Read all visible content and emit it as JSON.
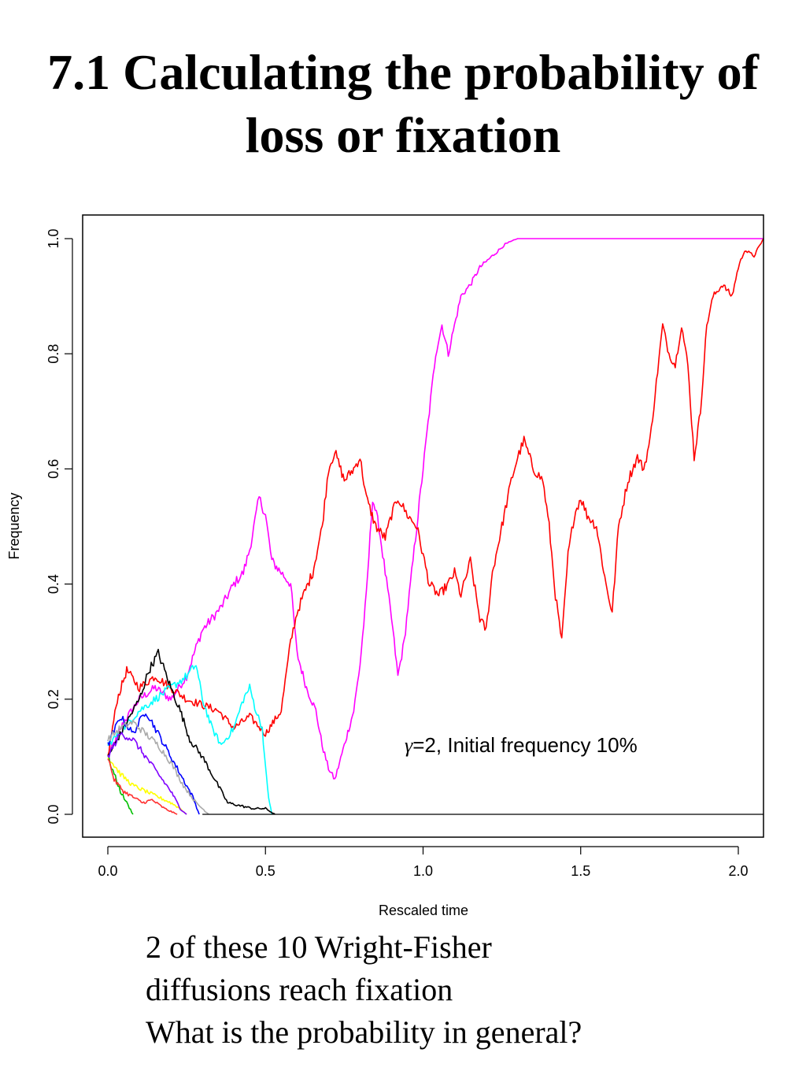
{
  "slide": {
    "title_line1": "7.1 Calculating the probability of",
    "title_line2": "loss or fixation"
  },
  "caption": {
    "line1": "2 of these 10 Wright-Fisher",
    "line2": "diffusions reach fixation",
    "line3": "What is the probability in general?"
  },
  "chart_data": {
    "type": "line",
    "title": "",
    "xlabel": "Rescaled time",
    "ylabel": "Frequency",
    "xlim": [
      0.0,
      2.08
    ],
    "ylim": [
      0.0,
      1.0
    ],
    "xticks": [
      "0.0",
      "0.5",
      "1.0",
      "1.5",
      "2.0"
    ],
    "xtick_values": [
      0.0,
      0.5,
      1.0,
      1.5,
      2.0
    ],
    "yticks": [
      "0.0",
      "0.2",
      "0.4",
      "0.6",
      "0.8",
      "1.0"
    ],
    "ytick_values": [
      0.0,
      0.2,
      0.4,
      0.6,
      0.8,
      1.0
    ],
    "grid": false,
    "annotation": {
      "symbol": "γ",
      "text": "=2, Initial frequency 10%"
    },
    "series": [
      {
        "color": "#ff00ff",
        "values": [
          [
            0.0,
            0.1
          ],
          [
            0.05,
            0.16
          ],
          [
            0.1,
            0.2
          ],
          [
            0.15,
            0.22
          ],
          [
            0.2,
            0.2
          ],
          [
            0.25,
            0.24
          ],
          [
            0.28,
            0.29
          ],
          [
            0.3,
            0.32
          ],
          [
            0.33,
            0.34
          ],
          [
            0.36,
            0.36
          ],
          [
            0.4,
            0.4
          ],
          [
            0.43,
            0.42
          ],
          [
            0.45,
            0.46
          ],
          [
            0.48,
            0.55
          ],
          [
            0.5,
            0.52
          ],
          [
            0.52,
            0.44
          ],
          [
            0.55,
            0.42
          ],
          [
            0.58,
            0.4
          ],
          [
            0.6,
            0.28
          ],
          [
            0.63,
            0.22
          ],
          [
            0.66,
            0.18
          ],
          [
            0.68,
            0.12
          ],
          [
            0.7,
            0.08
          ],
          [
            0.72,
            0.06
          ],
          [
            0.75,
            0.12
          ],
          [
            0.78,
            0.18
          ],
          [
            0.8,
            0.26
          ],
          [
            0.82,
            0.38
          ],
          [
            0.84,
            0.55
          ],
          [
            0.86,
            0.5
          ],
          [
            0.88,
            0.42
          ],
          [
            0.9,
            0.34
          ],
          [
            0.92,
            0.24
          ],
          [
            0.94,
            0.3
          ],
          [
            0.96,
            0.4
          ],
          [
            0.98,
            0.5
          ],
          [
            1.0,
            0.6
          ],
          [
            1.02,
            0.7
          ],
          [
            1.04,
            0.8
          ],
          [
            1.06,
            0.85
          ],
          [
            1.08,
            0.8
          ],
          [
            1.1,
            0.85
          ],
          [
            1.12,
            0.9
          ],
          [
            1.15,
            0.92
          ],
          [
            1.18,
            0.95
          ],
          [
            1.22,
            0.97
          ],
          [
            1.26,
            0.99
          ],
          [
            1.3,
            1.0
          ],
          [
            2.08,
            1.0
          ]
        ]
      },
      {
        "color": "#ff0000",
        "values": [
          [
            0.0,
            0.1
          ],
          [
            0.03,
            0.2
          ],
          [
            0.06,
            0.25
          ],
          [
            0.1,
            0.22
          ],
          [
            0.15,
            0.24
          ],
          [
            0.2,
            0.22
          ],
          [
            0.25,
            0.2
          ],
          [
            0.3,
            0.19
          ],
          [
            0.35,
            0.18
          ],
          [
            0.4,
            0.15
          ],
          [
            0.45,
            0.17
          ],
          [
            0.5,
            0.14
          ],
          [
            0.55,
            0.18
          ],
          [
            0.58,
            0.3
          ],
          [
            0.6,
            0.35
          ],
          [
            0.62,
            0.38
          ],
          [
            0.65,
            0.42
          ],
          [
            0.68,
            0.5
          ],
          [
            0.7,
            0.6
          ],
          [
            0.72,
            0.63
          ],
          [
            0.75,
            0.58
          ],
          [
            0.78,
            0.6
          ],
          [
            0.8,
            0.62
          ],
          [
            0.82,
            0.55
          ],
          [
            0.85,
            0.5
          ],
          [
            0.88,
            0.48
          ],
          [
            0.9,
            0.52
          ],
          [
            0.92,
            0.55
          ],
          [
            0.95,
            0.52
          ],
          [
            0.98,
            0.5
          ],
          [
            1.0,
            0.45
          ],
          [
            1.02,
            0.4
          ],
          [
            1.05,
            0.38
          ],
          [
            1.08,
            0.4
          ],
          [
            1.1,
            0.42
          ],
          [
            1.12,
            0.38
          ],
          [
            1.15,
            0.44
          ],
          [
            1.18,
            0.34
          ],
          [
            1.2,
            0.32
          ],
          [
            1.22,
            0.42
          ],
          [
            1.25,
            0.5
          ],
          [
            1.28,
            0.58
          ],
          [
            1.3,
            0.62
          ],
          [
            1.32,
            0.65
          ],
          [
            1.35,
            0.6
          ],
          [
            1.38,
            0.58
          ],
          [
            1.4,
            0.5
          ],
          [
            1.42,
            0.38
          ],
          [
            1.44,
            0.3
          ],
          [
            1.46,
            0.45
          ],
          [
            1.48,
            0.52
          ],
          [
            1.5,
            0.55
          ],
          [
            1.52,
            0.52
          ],
          [
            1.55,
            0.5
          ],
          [
            1.58,
            0.4
          ],
          [
            1.6,
            0.35
          ],
          [
            1.62,
            0.5
          ],
          [
            1.65,
            0.58
          ],
          [
            1.68,
            0.62
          ],
          [
            1.7,
            0.6
          ],
          [
            1.72,
            0.65
          ],
          [
            1.74,
            0.75
          ],
          [
            1.76,
            0.85
          ],
          [
            1.78,
            0.8
          ],
          [
            1.8,
            0.78
          ],
          [
            1.82,
            0.85
          ],
          [
            1.84,
            0.78
          ],
          [
            1.86,
            0.62
          ],
          [
            1.88,
            0.7
          ],
          [
            1.9,
            0.85
          ],
          [
            1.92,
            0.9
          ],
          [
            1.95,
            0.92
          ],
          [
            1.98,
            0.9
          ],
          [
            2.0,
            0.95
          ],
          [
            2.02,
            0.98
          ],
          [
            2.05,
            0.97
          ],
          [
            2.08,
            1.0
          ]
        ]
      },
      {
        "color": "#00ffff",
        "values": [
          [
            0.0,
            0.12
          ],
          [
            0.05,
            0.15
          ],
          [
            0.1,
            0.18
          ],
          [
            0.15,
            0.2
          ],
          [
            0.2,
            0.22
          ],
          [
            0.25,
            0.24
          ],
          [
            0.28,
            0.26
          ],
          [
            0.3,
            0.2
          ],
          [
            0.33,
            0.15
          ],
          [
            0.36,
            0.12
          ],
          [
            0.4,
            0.15
          ],
          [
            0.43,
            0.2
          ],
          [
            0.45,
            0.22
          ],
          [
            0.47,
            0.18
          ],
          [
            0.49,
            0.15
          ],
          [
            0.5,
            0.08
          ],
          [
            0.51,
            0.03
          ],
          [
            0.52,
            0.0
          ]
        ]
      },
      {
        "color": "#000000",
        "values": [
          [
            0.0,
            0.1
          ],
          [
            0.05,
            0.15
          ],
          [
            0.1,
            0.2
          ],
          [
            0.13,
            0.25
          ],
          [
            0.16,
            0.28
          ],
          [
            0.2,
            0.22
          ],
          [
            0.23,
            0.18
          ],
          [
            0.26,
            0.13
          ],
          [
            0.3,
            0.1
          ],
          [
            0.33,
            0.07
          ],
          [
            0.36,
            0.04
          ],
          [
            0.38,
            0.02
          ],
          [
            0.42,
            0.015
          ],
          [
            0.46,
            0.01
          ],
          [
            0.5,
            0.01
          ],
          [
            0.53,
            0.0
          ]
        ]
      },
      {
        "color": "#0000ff",
        "values": [
          [
            0.0,
            0.12
          ],
          [
            0.04,
            0.17
          ],
          [
            0.08,
            0.14
          ],
          [
            0.12,
            0.18
          ],
          [
            0.16,
            0.14
          ],
          [
            0.2,
            0.1
          ],
          [
            0.24,
            0.06
          ],
          [
            0.27,
            0.03
          ],
          [
            0.29,
            0.0
          ]
        ]
      },
      {
        "color": "#aaaaaa",
        "values": [
          [
            0.0,
            0.13
          ],
          [
            0.04,
            0.15
          ],
          [
            0.08,
            0.16
          ],
          [
            0.12,
            0.14
          ],
          [
            0.16,
            0.12
          ],
          [
            0.2,
            0.09
          ],
          [
            0.24,
            0.05
          ],
          [
            0.28,
            0.02
          ],
          [
            0.32,
            0.0
          ]
        ]
      },
      {
        "color": "#ffff00",
        "values": [
          [
            0.0,
            0.1
          ],
          [
            0.04,
            0.07
          ],
          [
            0.08,
            0.05
          ],
          [
            0.12,
            0.04
          ],
          [
            0.16,
            0.03
          ],
          [
            0.2,
            0.02
          ],
          [
            0.23,
            0.01
          ],
          [
            0.25,
            0.0
          ]
        ]
      },
      {
        "color": "#00c000",
        "values": [
          [
            0.0,
            0.1
          ],
          [
            0.02,
            0.07
          ],
          [
            0.04,
            0.04
          ],
          [
            0.06,
            0.02
          ],
          [
            0.08,
            0.0
          ]
        ]
      },
      {
        "color": "#ff3030",
        "values": [
          [
            0.0,
            0.1
          ],
          [
            0.02,
            0.06
          ],
          [
            0.05,
            0.04
          ],
          [
            0.08,
            0.03
          ],
          [
            0.11,
            0.02
          ],
          [
            0.14,
            0.025
          ],
          [
            0.18,
            0.01
          ],
          [
            0.22,
            0.0
          ]
        ]
      },
      {
        "color": "#8000ff",
        "values": [
          [
            0.0,
            0.1
          ],
          [
            0.04,
            0.14
          ],
          [
            0.08,
            0.13
          ],
          [
            0.12,
            0.1
          ],
          [
            0.16,
            0.07
          ],
          [
            0.2,
            0.04
          ],
          [
            0.23,
            0.01
          ],
          [
            0.25,
            0.0
          ]
        ]
      }
    ]
  }
}
